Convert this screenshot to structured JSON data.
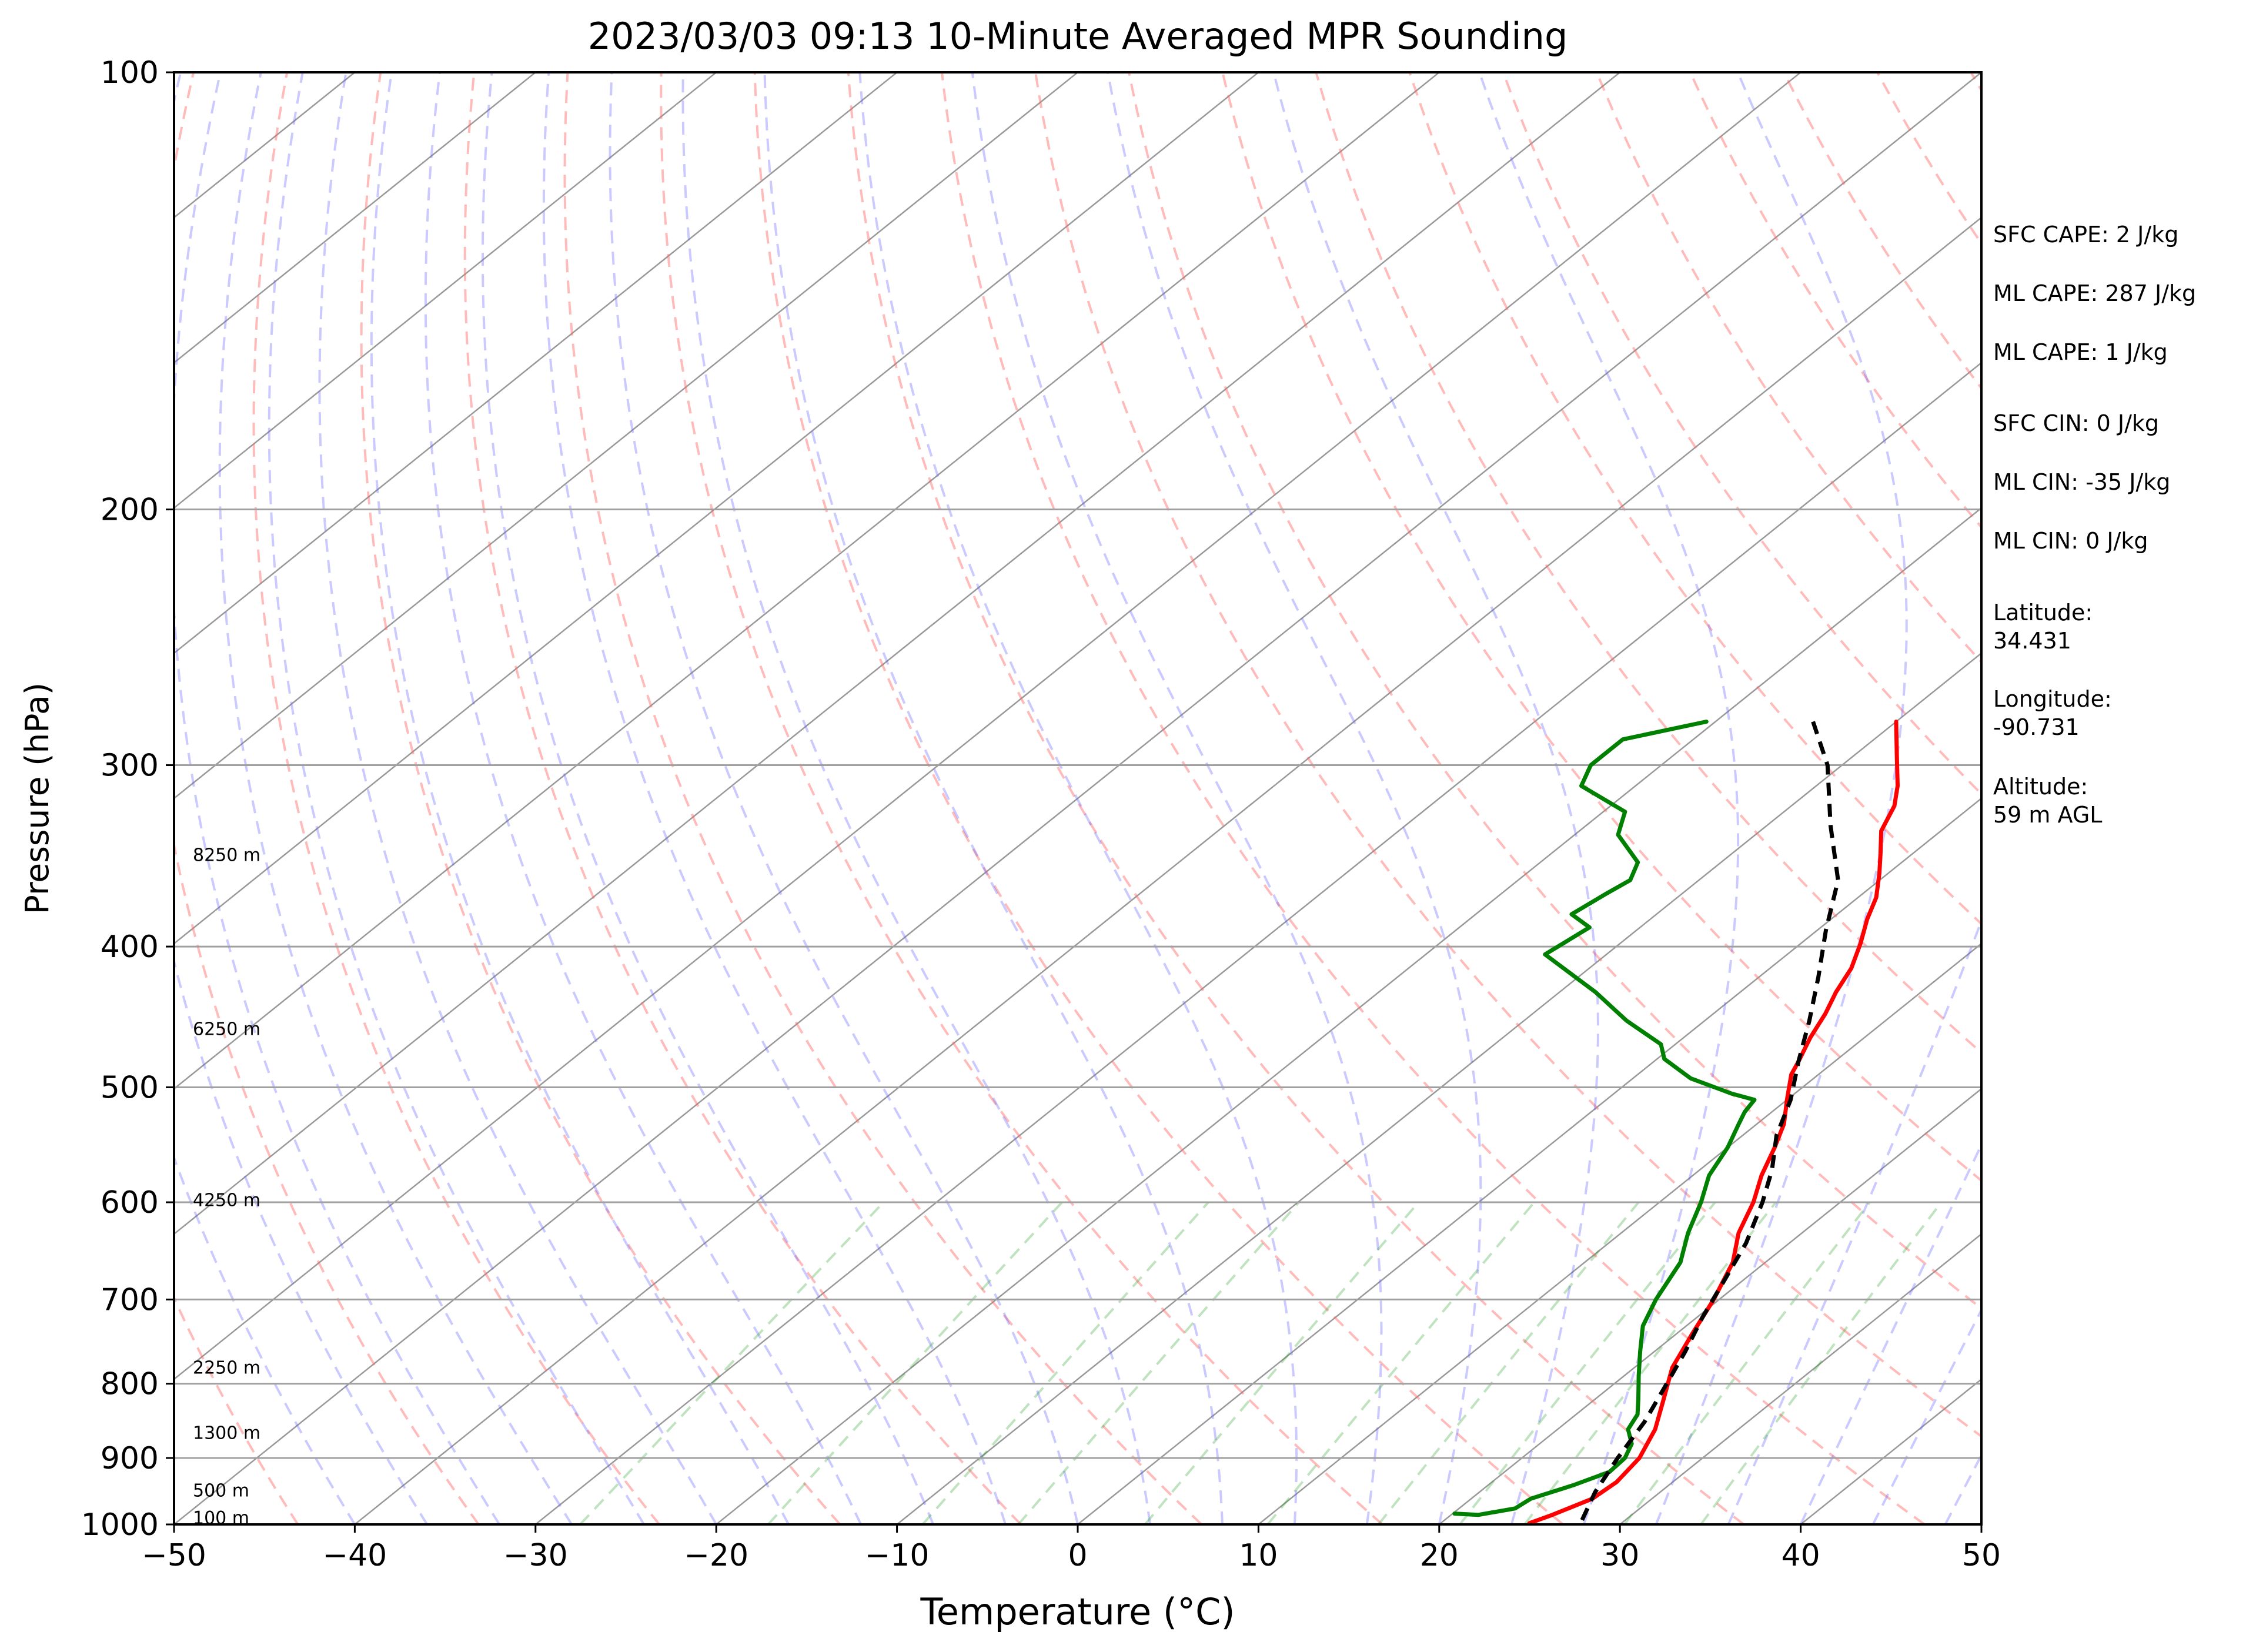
{
  "chart_data": {
    "type": "line",
    "title": "2023/03/03 09:13 10-Minute Averaged MPR Sounding",
    "xlabel": "Temperature (°C)",
    "ylabel": "Pressure (hPa)",
    "xlim": [
      -50,
      50
    ],
    "ylim": [
      1000,
      100
    ],
    "y_scale": "log",
    "skew": "skew-T log-P",
    "grid": true,
    "x_ticks": [
      "−50",
      "−40",
      "−30",
      "−20",
      "−10",
      "0",
      "10",
      "20",
      "30",
      "40",
      "50"
    ],
    "y_ticks": [
      "100",
      "200",
      "300",
      "400",
      "500",
      "600",
      "700",
      "800",
      "900",
      "1000"
    ],
    "height_labels": [
      {
        "p": 990,
        "label": "100 m"
      },
      {
        "p": 948,
        "label": "500 m"
      },
      {
        "p": 865,
        "label": "1300 m"
      },
      {
        "p": 780,
        "label": "2250 m"
      },
      {
        "p": 598,
        "label": "4250 m"
      },
      {
        "p": 456,
        "label": "6250 m"
      },
      {
        "p": 346,
        "label": "8250 m"
      }
    ],
    "series": [
      {
        "color": "#ff0000",
        "points": [
          [
            -10,
            280
          ],
          [
            -7.7,
            295
          ],
          [
            -5.5,
            310
          ],
          [
            -4.3,
            320
          ],
          [
            -3.3,
            333
          ],
          [
            -1.8,
            345
          ],
          [
            -0.5,
            356
          ],
          [
            1,
            370
          ],
          [
            2,
            383
          ],
          [
            3.3,
            398
          ],
          [
            4.5,
            414
          ],
          [
            5.3,
            430
          ],
          [
            6.2,
            445
          ],
          [
            7,
            462
          ],
          [
            8,
            480
          ],
          [
            8.5,
            490
          ],
          [
            10,
            510
          ],
          [
            11.5,
            530
          ],
          [
            12.6,
            550
          ],
          [
            13.8,
            575
          ],
          [
            15.2,
            600
          ],
          [
            16.5,
            630
          ],
          [
            18.2,
            660
          ],
          [
            19.7,
            700
          ],
          [
            20.9,
            740
          ],
          [
            22.1,
            780
          ],
          [
            23.8,
            820
          ],
          [
            25.4,
            860
          ],
          [
            26.5,
            900
          ],
          [
            26.9,
            935
          ],
          [
            26.7,
            960
          ],
          [
            25.6,
            985
          ],
          [
            24.9,
            998
          ]
        ]
      },
      {
        "color": "#008000",
        "points": [
          [
            -20.5,
            280
          ],
          [
            -23.9,
            288
          ],
          [
            -23.9,
            300
          ],
          [
            -23,
            310
          ],
          [
            -18.8,
            323
          ],
          [
            -17.6,
            335
          ],
          [
            -14.6,
            350
          ],
          [
            -13.8,
            360
          ],
          [
            -14.2,
            368
          ],
          [
            -14.7,
            380
          ],
          [
            -12.8,
            388
          ],
          [
            -13.4,
            405
          ],
          [
            -8,
            430
          ],
          [
            -4.3,
            450
          ],
          [
            -0.8,
            467
          ],
          [
            0.4,
            478
          ],
          [
            3.2,
            493
          ],
          [
            6.5,
            505
          ],
          [
            8.2,
            510
          ],
          [
            8.5,
            520
          ],
          [
            9,
            530
          ],
          [
            10,
            550
          ],
          [
            10.9,
            575
          ],
          [
            12.3,
            600
          ],
          [
            13.7,
            630
          ],
          [
            15.3,
            660
          ],
          [
            16.5,
            700
          ],
          [
            17.6,
            730
          ],
          [
            19.2,
            760
          ],
          [
            20.8,
            790
          ],
          [
            22.4,
            820
          ],
          [
            23.4,
            840
          ],
          [
            23.9,
            860
          ],
          [
            25.1,
            880
          ],
          [
            25.7,
            900
          ],
          [
            25.8,
            920
          ],
          [
            24.7,
            940
          ],
          [
            23.3,
            960
          ],
          [
            23.1,
            975
          ],
          [
            21.5,
            985
          ],
          [
            20.1,
            983
          ]
        ]
      },
      {
        "color": "#000000",
        "dashed": true,
        "points": [
          [
            -14.6,
            280
          ],
          [
            -10.8,
            300
          ],
          [
            -6.5,
            330
          ],
          [
            -2.3,
            360
          ],
          [
            0.5,
            390
          ],
          [
            3.3,
            420
          ],
          [
            5.8,
            450
          ],
          [
            8,
            480
          ],
          [
            10.2,
            510
          ],
          [
            11.9,
            540
          ],
          [
            14,
            570
          ],
          [
            15.7,
            600
          ],
          [
            17.6,
            640
          ],
          [
            19,
            680
          ],
          [
            20.3,
            720
          ],
          [
            21.7,
            760
          ],
          [
            22.9,
            800
          ],
          [
            24.3,
            850
          ],
          [
            25.3,
            900
          ],
          [
            26.4,
            950
          ],
          [
            27.6,
            993
          ]
        ]
      }
    ],
    "annotations": [
      "SFC CAPE: 2 J/kg",
      "ML CAPE: 287 J/kg",
      "ML CAPE: 1 J/kg",
      "SFC CIN: 0 J/kg",
      "ML CIN: -35 J/kg",
      "ML CIN: 0 J/kg",
      "Latitude:\n34.431",
      "Longitude:\n-90.731",
      "Altitude:\n59 m AGL"
    ],
    "colors": {
      "dry_adiabat": "#ff6666",
      "moist_adiabat": "#6666ff",
      "mixing_ratio": "#2ca02c",
      "isotherm": "#808080"
    }
  }
}
